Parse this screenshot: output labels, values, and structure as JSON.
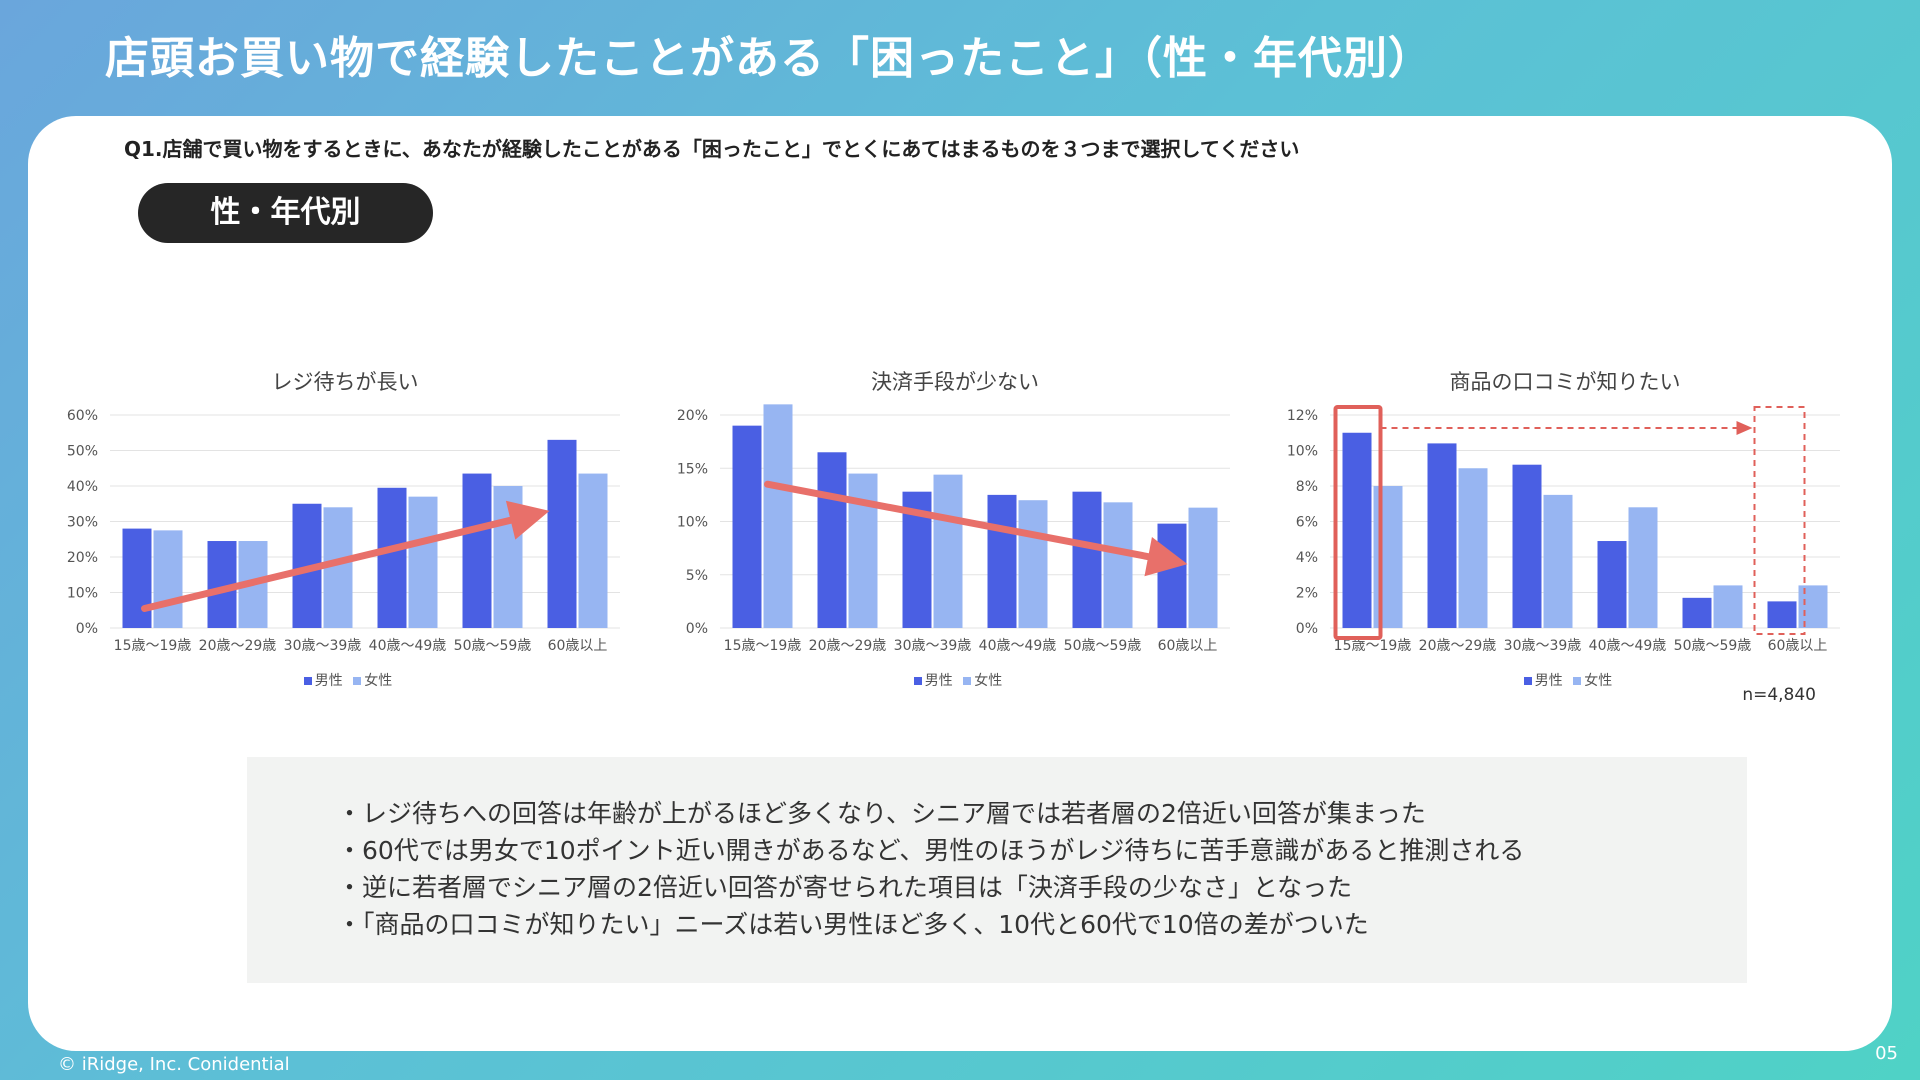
{
  "header": {
    "title": "店頭お買い物で経験したことがある「困ったこと」（性・年代別）"
  },
  "question": "Q1.店舗で買い物をするときに、あなたが経験したことがある「困ったこと」でとくにあてはまるものを３つまで選択してください",
  "segment_label": "性・年代別",
  "colors": {
    "male": "#4a5fe3",
    "female": "#97b5f2",
    "arrow": "#e8706a",
    "highlight": "#e0605a",
    "grid": "#e3e3e3"
  },
  "legend": {
    "male": "男性",
    "female": "女性"
  },
  "chart_data": [
    {
      "type": "bar",
      "title": "レジ待ちが長い",
      "categories": [
        "15歳～19歳",
        "20歳～29歳",
        "30歳～39歳",
        "40歳～49歳",
        "50歳～59歳",
        "60歳以上"
      ],
      "series": [
        {
          "name": "男性",
          "values": [
            28,
            24.5,
            35,
            39.5,
            43.5,
            53
          ]
        },
        {
          "name": "女性",
          "values": [
            27.5,
            24.5,
            34,
            37,
            40,
            43.5
          ]
        }
      ],
      "ylim": [
        0,
        60
      ],
      "yticks": [
        0,
        10,
        20,
        30,
        40,
        50,
        60
      ],
      "tick_labels": [
        "0%",
        "10%",
        "20%",
        "30%",
        "40%",
        "50%",
        "60%"
      ],
      "annotations": [
        {
          "type": "trend-arrow",
          "direction": "up"
        }
      ]
    },
    {
      "type": "bar",
      "title": "決済手段が少ない",
      "categories": [
        "15歳～19歳",
        "20歳～29歳",
        "30歳～39歳",
        "40歳～49歳",
        "50歳～59歳",
        "60歳以上"
      ],
      "series": [
        {
          "name": "男性",
          "values": [
            19,
            16.5,
            12.8,
            12.5,
            12.8,
            9.8
          ]
        },
        {
          "name": "女性",
          "values": [
            21,
            14.5,
            14.4,
            12,
            11.8,
            11.3
          ]
        }
      ],
      "ylim": [
        0,
        20
      ],
      "yticks": [
        0,
        5,
        10,
        15,
        20
      ],
      "tick_labels": [
        "0%",
        "5%",
        "10%",
        "15%",
        "20%"
      ],
      "annotations": [
        {
          "type": "trend-arrow",
          "direction": "down"
        }
      ]
    },
    {
      "type": "bar",
      "title": "商品の口コミが知りたい",
      "categories": [
        "15歳～19歳",
        "20歳～29歳",
        "30歳～39歳",
        "40歳～49歳",
        "50歳～59歳",
        "60歳以上"
      ],
      "series": [
        {
          "name": "男性",
          "values": [
            11,
            10.4,
            9.2,
            4.9,
            1.7,
            1.5
          ]
        },
        {
          "name": "女性",
          "values": [
            8,
            9,
            7.5,
            6.8,
            2.4,
            2.4
          ]
        }
      ],
      "ylim": [
        0,
        12
      ],
      "yticks": [
        0,
        2,
        4,
        6,
        8,
        10,
        12
      ],
      "tick_labels": [
        "0%",
        "2%",
        "4%",
        "6%",
        "8%",
        "10%",
        "12%"
      ],
      "annotations": [
        {
          "type": "highlight-compare",
          "from": "15歳～19歳",
          "to": "60歳以上"
        }
      ]
    }
  ],
  "sample_size": "n=4,840",
  "summary": [
    "レジ待ちへの回答は年齢が上がるほど多くなり、シニア層では若者層の2倍近い回答が集まった",
    "60代では男女で10ポイント近い開きがあるなど、男性のほうがレジ待ちに苦手意識があると推測される",
    "逆に若者層でシニア層の2倍近い回答が寄せられた項目は「決済手段の少なさ」となった",
    "「商品の口コミが知りたい」ニーズは若い男性ほど多く、10代と60代で10倍の差がついた"
  ],
  "footer": {
    "copyright": "© iRidge, Inc. Conidential",
    "page_number": "05"
  }
}
